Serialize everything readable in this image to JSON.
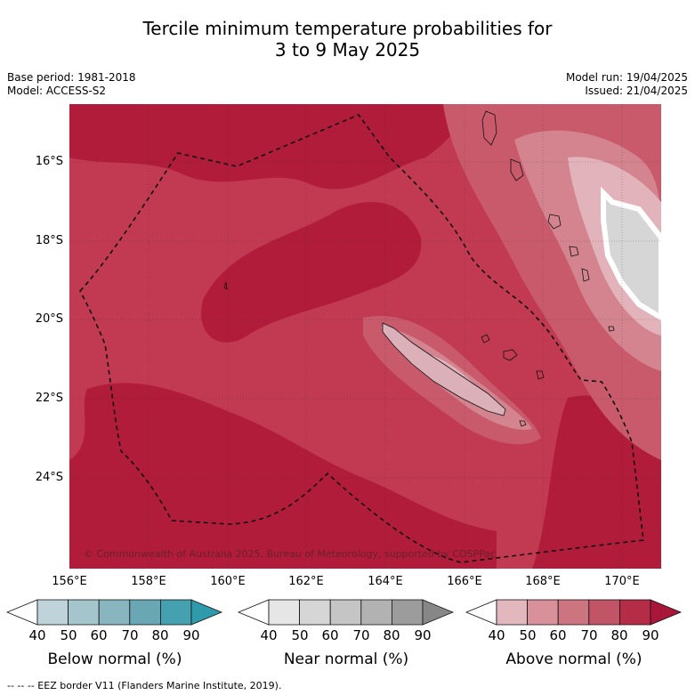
{
  "title_line1": "Tercile minimum temperature probabilities for",
  "title_line2": "3 to 9 May 2025",
  "meta_left": [
    "Base period: 1981-2018",
    "Model: ACCESS-S2"
  ],
  "meta_right": [
    "Model run: 19/04/2025",
    "Issued: 21/04/2025"
  ],
  "lat_labels": [
    "16°S",
    "18°S",
    "20°S",
    "22°S",
    "24°S"
  ],
  "lon_labels": [
    "156°E",
    "158°E",
    "160°E",
    "162°E",
    "164°E",
    "166°E",
    "168°E",
    "170°E"
  ],
  "copyright": "© Commonwealth of Australia 2025, Bureau of Meteorology, supported by COSPPac",
  "colorbars": [
    {
      "label": "Below normal (%)",
      "ticks": [
        "40",
        "50",
        "60",
        "70",
        "80",
        "90"
      ],
      "colors": [
        "#ffffff",
        "#bfd4da",
        "#a5c5cc",
        "#89b5bf",
        "#6aa7b4",
        "#45a0b0",
        "#2f9aaa"
      ]
    },
    {
      "label": "Near normal (%)",
      "ticks": [
        "40",
        "50",
        "60",
        "70",
        "80",
        "90"
      ],
      "colors": [
        "#ffffff",
        "#e6e6e6",
        "#d6d6d6",
        "#c5c5c5",
        "#b2b2b2",
        "#9c9c9c",
        "#878787"
      ]
    },
    {
      "label": "Above normal (%)",
      "ticks": [
        "40",
        "50",
        "60",
        "70",
        "80",
        "90"
      ],
      "colors": [
        "#ffffff",
        "#e2b8bf",
        "#d8909b",
        "#cc7480",
        "#c25468",
        "#b52c47",
        "#a8173a"
      ]
    }
  ],
  "footer": "--  --  -- EEZ border V11 (Flanders Marine Institute, 2019)."
}
